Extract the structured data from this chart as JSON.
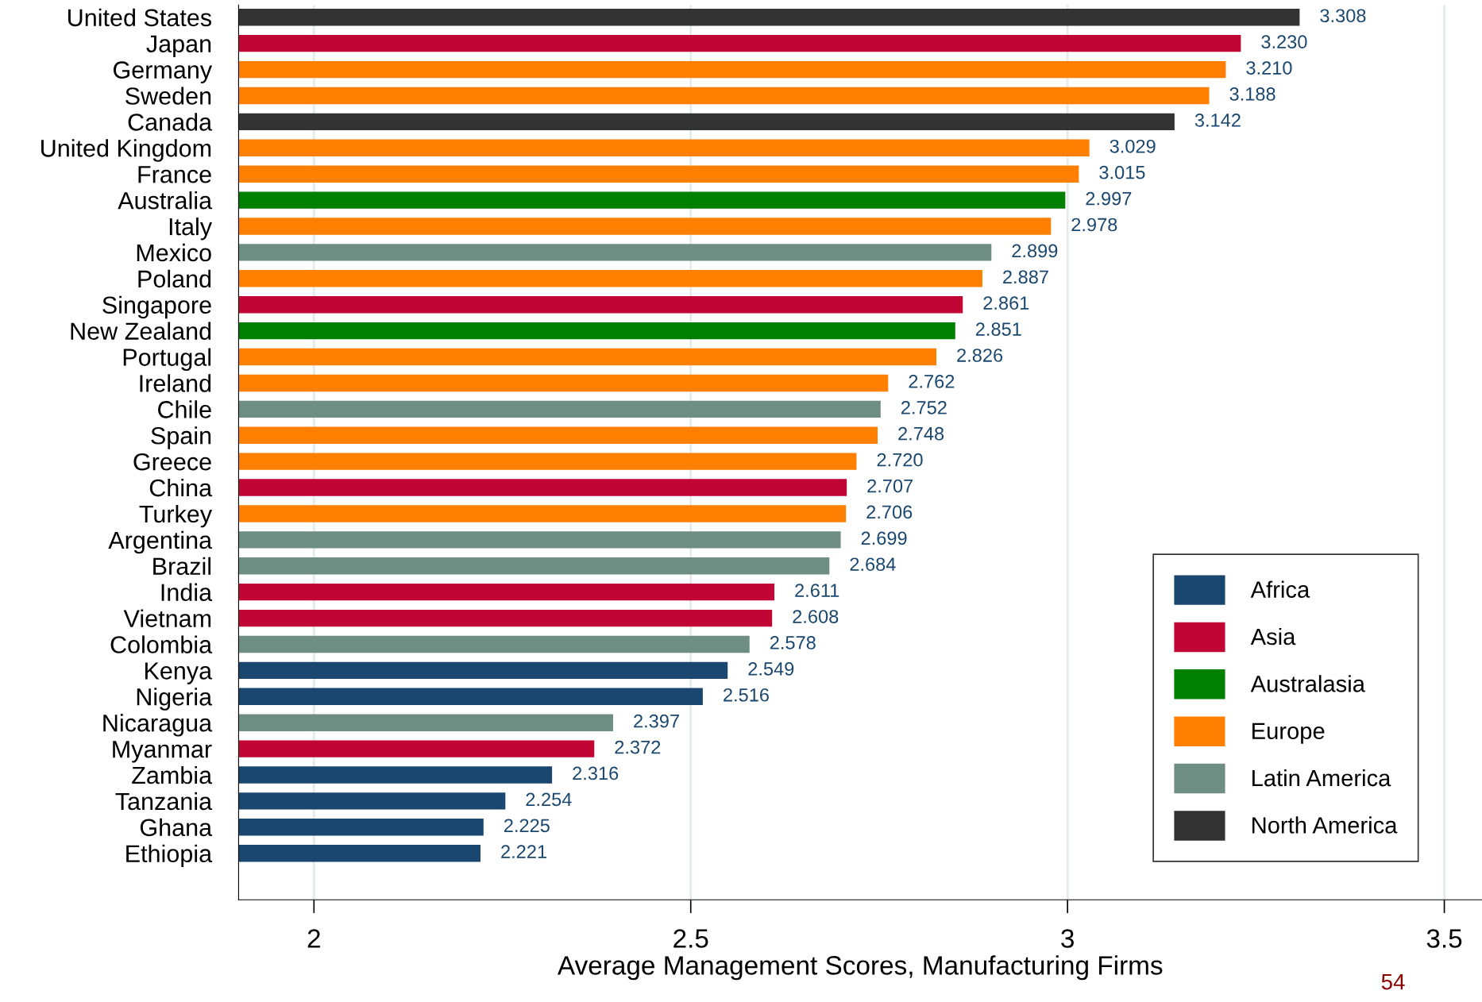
{
  "chart_data": {
    "type": "bar",
    "orientation": "horizontal",
    "xlabel": "Average Management Scores, Manufacturing Firms",
    "categories": [
      "United States",
      "Japan",
      "Germany",
      "Sweden",
      "Canada",
      "United Kingdom",
      "France",
      "Australia",
      "Italy",
      "Mexico",
      "Poland",
      "Singapore",
      "New Zealand",
      "Portugal",
      "Ireland",
      "Chile",
      "Spain",
      "Greece",
      "China",
      "Turkey",
      "Argentina",
      "Brazil",
      "India",
      "Vietnam",
      "Colombia",
      "Kenya",
      "Nigeria",
      "Nicaragua",
      "Myanmar",
      "Zambia",
      "Tanzania",
      "Ghana",
      "Ethiopia"
    ],
    "series": [
      {
        "name": "Africa",
        "color": "#1a476f",
        "values": [
          null,
          null,
          null,
          null,
          null,
          null,
          null,
          null,
          null,
          null,
          null,
          null,
          null,
          null,
          null,
          null,
          null,
          null,
          null,
          null,
          null,
          null,
          null,
          null,
          null,
          2.549,
          2.516,
          null,
          null,
          2.316,
          2.254,
          2.225,
          2.221
        ],
        "value_labels": [
          null,
          null,
          null,
          null,
          null,
          null,
          null,
          null,
          null,
          null,
          null,
          null,
          null,
          null,
          null,
          null,
          null,
          null,
          null,
          null,
          null,
          null,
          null,
          null,
          null,
          "2.549",
          "2.516",
          null,
          null,
          "2.316",
          "2.254",
          "2.225",
          "2.221"
        ]
      },
      {
        "name": "Asia",
        "color": "#c10534",
        "values": [
          null,
          3.23,
          null,
          null,
          null,
          null,
          null,
          null,
          null,
          null,
          null,
          2.861,
          null,
          null,
          null,
          null,
          null,
          null,
          2.707,
          null,
          null,
          null,
          2.611,
          2.608,
          null,
          null,
          null,
          null,
          2.372,
          null,
          null,
          null,
          null
        ],
        "value_labels": [
          null,
          "3.230",
          null,
          null,
          null,
          null,
          null,
          null,
          null,
          null,
          null,
          "2.861",
          null,
          null,
          null,
          null,
          null,
          null,
          "2.707",
          null,
          null,
          null,
          "2.611",
          "2.608",
          null,
          null,
          null,
          null,
          "2.372",
          null,
          null,
          null,
          null
        ]
      },
      {
        "name": "Australasia",
        "color": "#008000",
        "values": [
          null,
          null,
          null,
          null,
          null,
          null,
          null,
          2.997,
          null,
          null,
          null,
          null,
          2.851,
          null,
          null,
          null,
          null,
          null,
          null,
          null,
          null,
          null,
          null,
          null,
          null,
          null,
          null,
          null,
          null,
          null,
          null,
          null,
          null
        ],
        "value_labels": [
          null,
          null,
          null,
          null,
          null,
          null,
          null,
          "2.997",
          null,
          null,
          null,
          null,
          "2.851",
          null,
          null,
          null,
          null,
          null,
          null,
          null,
          null,
          null,
          null,
          null,
          null,
          null,
          null,
          null,
          null,
          null,
          null,
          null,
          null
        ]
      },
      {
        "name": "Europe",
        "color": "#ff8000",
        "values": [
          null,
          null,
          3.21,
          3.188,
          null,
          3.029,
          3.015,
          null,
          2.978,
          null,
          2.887,
          null,
          null,
          2.826,
          2.762,
          null,
          2.748,
          2.72,
          null,
          2.706,
          null,
          null,
          null,
          null,
          null,
          null,
          null,
          null,
          null,
          null,
          null,
          null,
          null
        ],
        "value_labels": [
          null,
          null,
          "3.210",
          "3.188",
          null,
          "3.029",
          "3.015",
          null,
          "2.978",
          null,
          "2.887",
          null,
          null,
          "2.826",
          "2.762",
          null,
          "2.748",
          "2.720",
          null,
          "2.706",
          null,
          null,
          null,
          null,
          null,
          null,
          null,
          null,
          null,
          null,
          null,
          null,
          null
        ]
      },
      {
        "name": "Latin America",
        "color": "#6e8e84",
        "values": [
          null,
          null,
          null,
          null,
          null,
          null,
          null,
          null,
          null,
          2.899,
          null,
          null,
          null,
          null,
          null,
          2.752,
          null,
          null,
          null,
          null,
          2.699,
          2.684,
          null,
          null,
          2.578,
          null,
          null,
          2.397,
          null,
          null,
          null,
          null,
          null
        ],
        "value_labels": [
          null,
          null,
          null,
          null,
          null,
          null,
          null,
          null,
          null,
          "2.899",
          null,
          null,
          null,
          null,
          null,
          "2.752",
          null,
          null,
          null,
          null,
          "2.699",
          "2.684",
          null,
          null,
          "2.578",
          null,
          null,
          "2.397",
          null,
          null,
          null,
          null,
          null
        ]
      },
      {
        "name": "North America",
        "color": "#333333",
        "values": [
          3.308,
          null,
          null,
          null,
          3.142,
          null,
          null,
          null,
          null,
          null,
          null,
          null,
          null,
          null,
          null,
          null,
          null,
          null,
          null,
          null,
          null,
          null,
          null,
          null,
          null,
          null,
          null,
          null,
          null,
          null,
          null,
          null,
          null
        ],
        "value_labels": [
          "3.308",
          null,
          null,
          null,
          "3.142",
          null,
          null,
          null,
          null,
          null,
          null,
          null,
          null,
          null,
          null,
          null,
          null,
          null,
          null,
          null,
          null,
          null,
          null,
          null,
          null,
          null,
          null,
          null,
          null,
          null,
          null,
          null,
          null
        ]
      }
    ],
    "xlim": [
      1.9,
      3.55
    ],
    "xticks": [
      2,
      2.5,
      3,
      3.5
    ],
    "grid": "x",
    "legend": "bottom right",
    "annotations": [
      "54"
    ]
  }
}
